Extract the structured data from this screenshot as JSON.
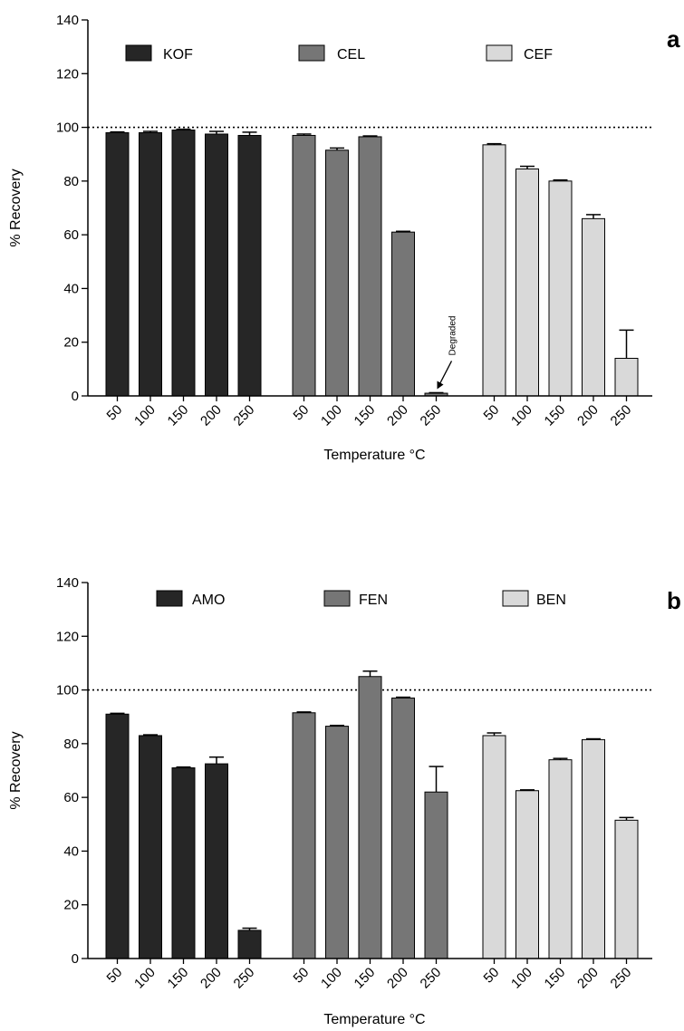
{
  "chart_data": [
    {
      "type": "bar",
      "panel_label": "a",
      "ylabel": "% Recovery",
      "xlabel": "Temperature °C",
      "ylim": [
        0,
        140
      ],
      "yticks": [
        0,
        20,
        40,
        60,
        80,
        100,
        120,
        140
      ],
      "reference_line": 100,
      "categories": [
        "50",
        "100",
        "150",
        "200",
        "250"
      ],
      "legend_placement": "top",
      "series": [
        {
          "name": "KOF",
          "color": "#262626",
          "values": [
            98,
            98,
            99,
            97.5,
            97
          ],
          "errors": [
            0.3,
            0.5,
            0.3,
            1.0,
            1.2
          ]
        },
        {
          "name": "CEL",
          "color": "#767676",
          "values": [
            97,
            91.5,
            96.5,
            61,
            1
          ],
          "errors": [
            0.5,
            0.8,
            0.3,
            0.3,
            0.2
          ]
        },
        {
          "name": "CEF",
          "color": "#d9d9d9",
          "values": [
            93.5,
            84.5,
            80,
            66,
            14
          ],
          "errors": [
            0.4,
            1.0,
            0.4,
            1.5,
            10.5
          ]
        }
      ],
      "annotation": {
        "text": "Degraded",
        "series": 1,
        "category": 4
      }
    },
    {
      "type": "bar",
      "panel_label": "b",
      "ylabel": "% Recovery",
      "xlabel": "Temperature °C",
      "ylim": [
        0,
        140
      ],
      "yticks": [
        0,
        20,
        40,
        60,
        80,
        100,
        120,
        140
      ],
      "reference_line": 100,
      "categories": [
        "50",
        "100",
        "150",
        "200",
        "250"
      ],
      "legend_placement": "top",
      "series": [
        {
          "name": "AMO",
          "color": "#262626",
          "values": [
            91,
            83,
            71,
            72.5,
            10.5
          ],
          "errors": [
            0.3,
            0.3,
            0.3,
            2.5,
            0.8
          ]
        },
        {
          "name": "FEN",
          "color": "#767676",
          "values": [
            91.5,
            86.5,
            105,
            97,
            62
          ],
          "errors": [
            0.3,
            0.3,
            2.0,
            0.3,
            9.5
          ]
        },
        {
          "name": "BEN",
          "color": "#d9d9d9",
          "values": [
            83,
            62.5,
            74,
            81.5,
            51.5
          ],
          "errors": [
            1.0,
            0.3,
            0.5,
            0.3,
            1.0
          ]
        }
      ]
    }
  ]
}
